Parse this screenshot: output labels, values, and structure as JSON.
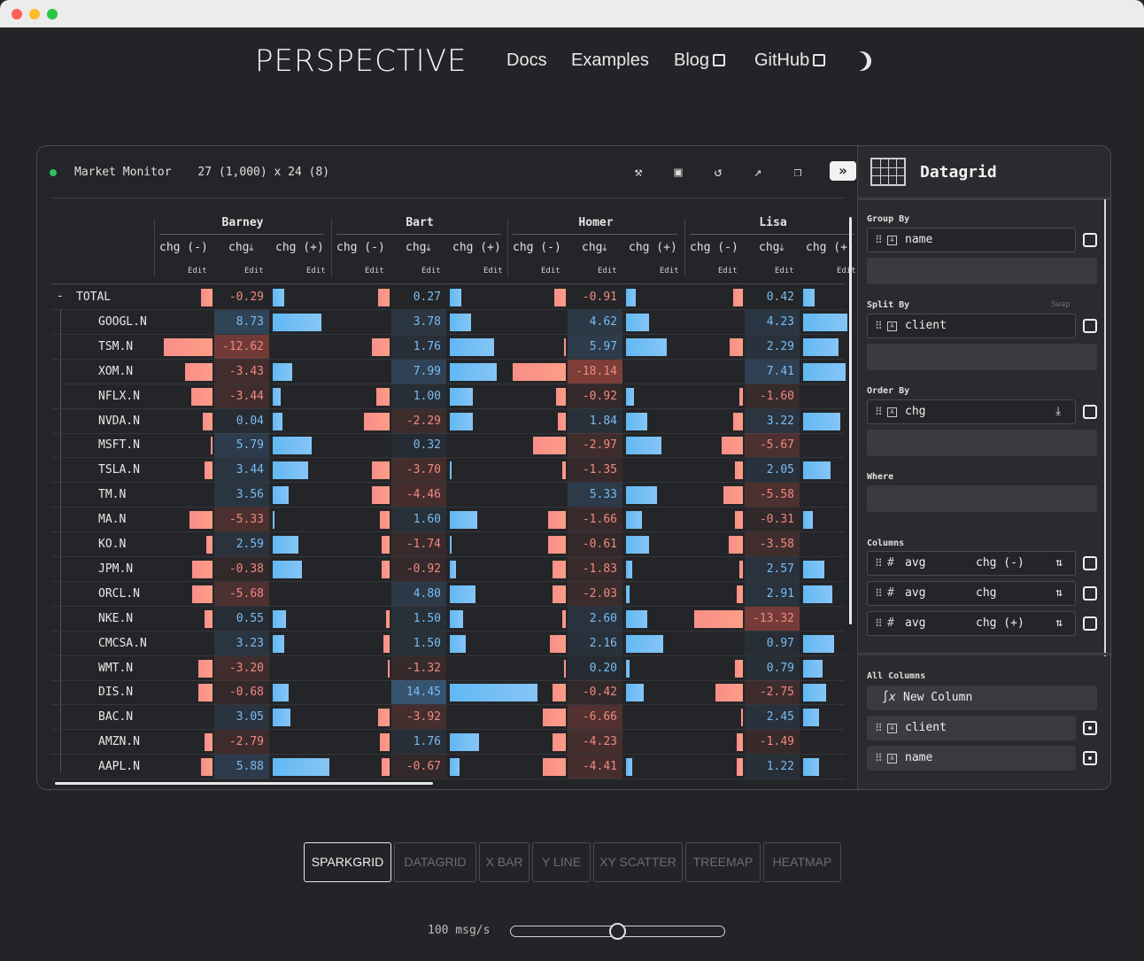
{
  "nav": {
    "logo": "PERSPECTIVE",
    "links": [
      "Docs",
      "Examples",
      "Blog",
      "GitHub"
    ]
  },
  "viewer": {
    "title": "Market Monitor",
    "dims": "27 (1,000) x 24 (8)",
    "groups": [
      "Barney",
      "Bart",
      "Homer",
      "Lisa"
    ],
    "col_headers": [
      "chg (-)",
      "chg",
      "chg (+)"
    ],
    "edit_label": "Edit",
    "rows": [
      {
        "name": "TOTAL",
        "vals": [
          -0.29,
          0.27,
          -0.91,
          0.42
        ]
      },
      {
        "name": "GOOGL.N",
        "vals": [
          8.73,
          3.78,
          4.62,
          4.23
        ]
      },
      {
        "name": "TSM.N",
        "vals": [
          -12.62,
          1.76,
          5.97,
          2.29
        ]
      },
      {
        "name": "XOM.N",
        "vals": [
          -3.43,
          7.99,
          -18.14,
          7.41
        ]
      },
      {
        "name": "NFLX.N",
        "vals": [
          -3.44,
          1.0,
          -0.92,
          -1.6
        ]
      },
      {
        "name": "NVDA.N",
        "vals": [
          0.04,
          -2.29,
          1.84,
          3.22
        ]
      },
      {
        "name": "MSFT.N",
        "vals": [
          5.79,
          0.32,
          -2.97,
          -5.67
        ]
      },
      {
        "name": "TSLA.N",
        "vals": [
          3.44,
          -3.7,
          -1.35,
          2.05
        ]
      },
      {
        "name": "TM.N",
        "vals": [
          3.56,
          -4.46,
          5.33,
          -5.58
        ]
      },
      {
        "name": "MA.N",
        "vals": [
          -5.33,
          1.6,
          -1.66,
          -0.31
        ]
      },
      {
        "name": "KO.N",
        "vals": [
          2.59,
          -1.74,
          -0.61,
          -3.58
        ]
      },
      {
        "name": "JPM.N",
        "vals": [
          -0.38,
          -0.92,
          -1.83,
          2.57
        ]
      },
      {
        "name": "ORCL.N",
        "vals": [
          -5.68,
          4.8,
          -2.03,
          2.91
        ]
      },
      {
        "name": "NKE.N",
        "vals": [
          0.55,
          1.5,
          2.6,
          -13.32
        ]
      },
      {
        "name": "CMCSA.N",
        "vals": [
          3.23,
          1.5,
          2.16,
          0.97
        ]
      },
      {
        "name": "WMT.N",
        "vals": [
          -3.2,
          -1.32,
          0.2,
          0.79
        ]
      },
      {
        "name": "DIS.N",
        "vals": [
          -0.68,
          14.45,
          -0.42,
          -2.75
        ]
      },
      {
        "name": "BAC.N",
        "vals": [
          3.05,
          -3.92,
          -6.66,
          2.45
        ]
      },
      {
        "name": "AMZN.N",
        "vals": [
          -2.79,
          1.76,
          -4.23,
          -1.49
        ]
      },
      {
        "name": "AAPL.N",
        "vals": [
          5.88,
          -0.67,
          -4.41,
          1.22
        ]
      }
    ],
    "neg_bars": [
      [
        0.12,
        0.12,
        0.12,
        0.1
      ],
      [
        0,
        0,
        0,
        0
      ],
      [
        0.5,
        0.18,
        0.02,
        0.14
      ],
      [
        0.28,
        0,
        0.55,
        0
      ],
      [
        0.22,
        0.14,
        0.1,
        0.04
      ],
      [
        0.1,
        0.26,
        0.08,
        0.1
      ],
      [
        0.02,
        0,
        0.34,
        0.22
      ],
      [
        0.08,
        0.18,
        0.04,
        0.08
      ],
      [
        0,
        0.18,
        0,
        0.2
      ],
      [
        0.24,
        0.1,
        0.18,
        0.08
      ],
      [
        0.06,
        0.08,
        0.18,
        0.15
      ],
      [
        0.21,
        0.08,
        0.14,
        0.04
      ],
      [
        0.21,
        0,
        0.14,
        0.06
      ],
      [
        0.08,
        0.04,
        0.04,
        0.5
      ],
      [
        0,
        0.06,
        0.16,
        0
      ],
      [
        0.15,
        0.02,
        0.02,
        0.08
      ],
      [
        0.15,
        0,
        0.14,
        0.28
      ],
      [
        0,
        0.12,
        0.24,
        0.02
      ],
      [
        0.08,
        0.1,
        0.14,
        0.06
      ],
      [
        0.12,
        0.08,
        0.24,
        0.06
      ]
    ],
    "pos_bars": [
      [
        0.12,
        0.12,
        0.1,
        0.12
      ],
      [
        0.5,
        0.22,
        0.24,
        0.45
      ],
      [
        0,
        0.45,
        0.42,
        0.36
      ],
      [
        0.2,
        0.48,
        0,
        0.44
      ],
      [
        0.08,
        0.24,
        0.08,
        0
      ],
      [
        0.1,
        0.24,
        0.22,
        0.38
      ],
      [
        0.4,
        0,
        0.36,
        0
      ],
      [
        0.36,
        0.02,
        0,
        0.28
      ],
      [
        0.16,
        0,
        0.32,
        0
      ],
      [
        0.02,
        0.28,
        0.16,
        0.1
      ],
      [
        0.26,
        0.02,
        0.24,
        0
      ],
      [
        0.3,
        0.06,
        0.06,
        0.22
      ],
      [
        0,
        0.26,
        0.04,
        0.3
      ],
      [
        0.14,
        0.14,
        0.22,
        0
      ],
      [
        0.12,
        0.16,
        0.38,
        0.32
      ],
      [
        0,
        0,
        0.04,
        0.2
      ],
      [
        0.16,
        0.9,
        0.18,
        0.24
      ],
      [
        0.18,
        0,
        0,
        0.16
      ],
      [
        0,
        0.3,
        0,
        0
      ],
      [
        0.58,
        0.1,
        0.06,
        0.16
      ]
    ]
  },
  "side": {
    "title": "Datagrid",
    "group_by_label": "Group By",
    "group_by": "name",
    "split_by_label": "Split By",
    "swap_label": "Swap",
    "split_by": "client",
    "order_by_label": "Order By",
    "order_by": "chg",
    "where_label": "Where",
    "columns_label": "Columns",
    "columns": [
      {
        "agg": "avg",
        "name": "chg (-)"
      },
      {
        "agg": "avg",
        "name": "chg"
      },
      {
        "agg": "avg",
        "name": "chg (+)"
      }
    ],
    "all_columns_label": "All Columns",
    "new_column": "New Column",
    "all_columns": [
      "client",
      "name"
    ]
  },
  "tabs": [
    "SPARKGRID",
    "DATAGRID",
    "X BAR",
    "Y LINE",
    "XY SCATTER",
    "TREEMAP",
    "HEATMAP"
  ],
  "active_tab": "SPARKGRID",
  "rate": "100 msg/s",
  "rate_slider_fraction": 0.5
}
